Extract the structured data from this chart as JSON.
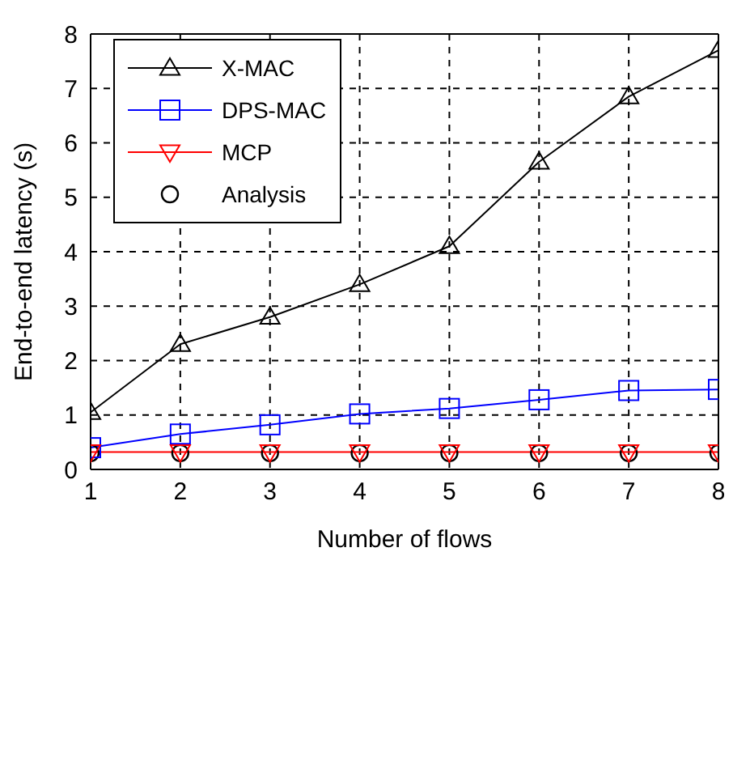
{
  "chart_data": {
    "type": "line",
    "xlabel": "Number of flows",
    "ylabel": "End-to-end latency (s)",
    "x": [
      1,
      2,
      3,
      4,
      5,
      6,
      7,
      8
    ],
    "xlim": [
      1,
      8
    ],
    "xticks": [
      1,
      2,
      3,
      4,
      5,
      6,
      7,
      8
    ],
    "ylim": [
      0,
      8
    ],
    "yticks": [
      0,
      1,
      2,
      3,
      4,
      5,
      6,
      7,
      8
    ],
    "grid": true,
    "legend": "top left",
    "series": [
      {
        "name": "X-MAC",
        "color": "#000000",
        "marker": "triangle",
        "line_style": "solid",
        "values": [
          1.05,
          2.3,
          2.8,
          3.4,
          4.1,
          5.65,
          6.85,
          7.7
        ]
      },
      {
        "name": "DPS-MAC",
        "color": "#0000ff",
        "marker": "square",
        "line_style": "solid",
        "values": [
          0.4,
          0.65,
          0.82,
          1.02,
          1.12,
          1.28,
          1.45,
          1.47
        ]
      },
      {
        "name": "MCP",
        "color": "#ff0000",
        "marker": "triangle-down",
        "line_style": "solid",
        "values": [
          0.32,
          0.32,
          0.32,
          0.32,
          0.32,
          0.32,
          0.32,
          0.32
        ]
      },
      {
        "name": "Analysis",
        "type": "scatter",
        "color": "#000000",
        "marker": "circle",
        "values": [
          0.3,
          0.3,
          0.3,
          0.3,
          0.3,
          0.3,
          0.3,
          0.3
        ]
      }
    ]
  }
}
